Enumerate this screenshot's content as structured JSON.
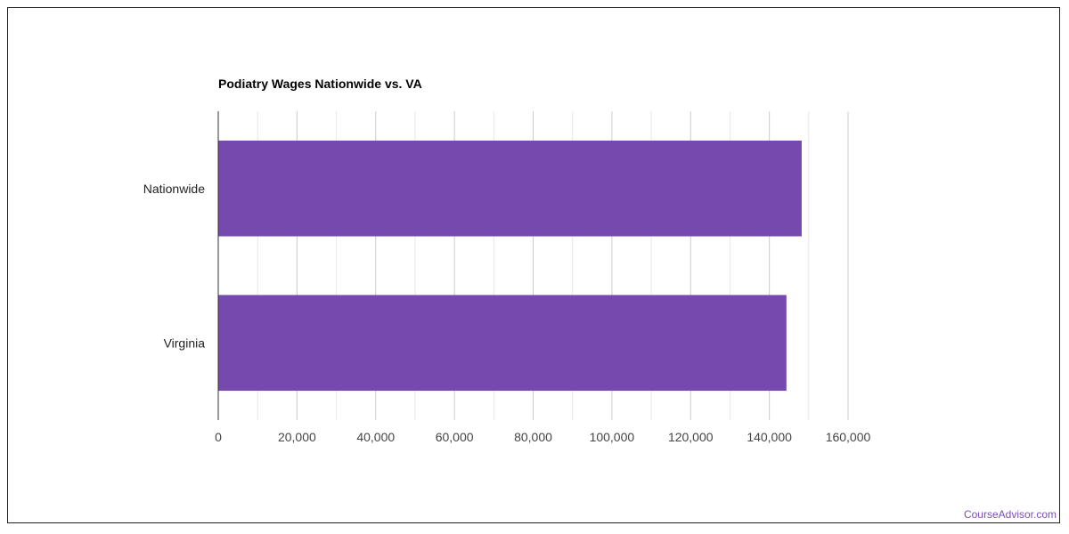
{
  "chart_data": {
    "type": "bar",
    "orientation": "horizontal",
    "title": "Podiatry Wages Nationwide vs. VA",
    "categories": [
      "Nationwide",
      "Virginia"
    ],
    "values": [
      148220,
      144340
    ],
    "xlim": [
      0,
      160000
    ],
    "x_ticks": [
      0,
      20000,
      40000,
      60000,
      80000,
      100000,
      120000,
      140000,
      160000
    ],
    "x_tick_labels": [
      "0",
      "20,000",
      "40,000",
      "60,000",
      "80,000",
      "100,000",
      "120,000",
      "140,000",
      "160,000"
    ],
    "xlabel": "",
    "ylabel": "",
    "grid": true,
    "bar_color": "#7549ae",
    "legend": "none"
  },
  "watermark": "CourseAdvisor.com",
  "colors": {
    "bar": "#7549ae",
    "watermark": "#7b4fb3",
    "grid": "#dddddd",
    "axis": "#333333"
  }
}
